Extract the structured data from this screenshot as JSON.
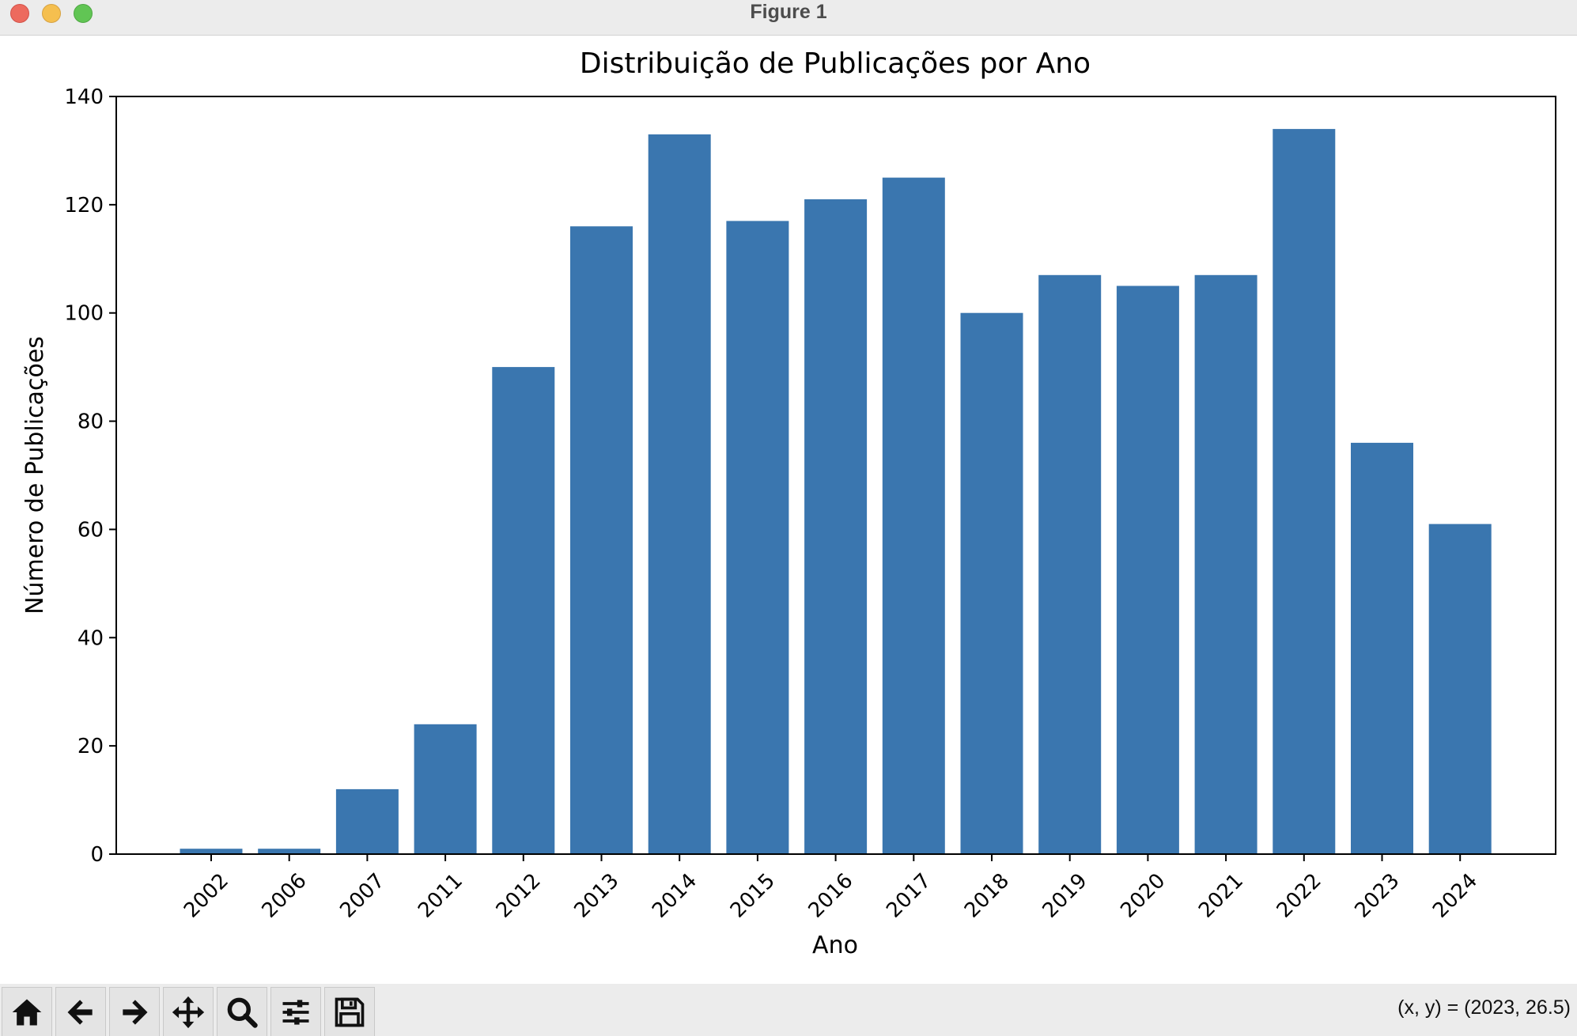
{
  "window": {
    "title": "Figure 1"
  },
  "toolbar": {
    "buttons": [
      {
        "name": "home-button",
        "icon": "home-icon"
      },
      {
        "name": "back-button",
        "icon": "arrow-left-icon"
      },
      {
        "name": "forward-button",
        "icon": "arrow-right-icon"
      },
      {
        "name": "pan-button",
        "icon": "move-icon"
      },
      {
        "name": "zoom-button",
        "icon": "magnifier-icon"
      },
      {
        "name": "configure-subplots-button",
        "icon": "sliders-icon"
      },
      {
        "name": "save-button",
        "icon": "floppy-disk-icon"
      }
    ],
    "coords_text": "(x, y) = (2023, 26.5)"
  },
  "chart_data": {
    "type": "bar",
    "title": "Distribuição de Publicações por Ano",
    "xlabel": "Ano",
    "ylabel": "Número de Publicações",
    "categories": [
      "2002",
      "2006",
      "2007",
      "2011",
      "2012",
      "2013",
      "2014",
      "2015",
      "2016",
      "2017",
      "2018",
      "2019",
      "2020",
      "2021",
      "2022",
      "2023",
      "2024"
    ],
    "values": [
      1,
      1,
      12,
      24,
      90,
      116,
      133,
      117,
      121,
      125,
      100,
      107,
      105,
      107,
      134,
      76,
      61
    ],
    "ylim": [
      0,
      140
    ],
    "yticks": [
      0,
      20,
      40,
      60,
      80,
      100,
      120,
      140
    ],
    "bar_color": "#3a76af",
    "grid": false,
    "legend": "none",
    "xtick_rotation": 45
  }
}
